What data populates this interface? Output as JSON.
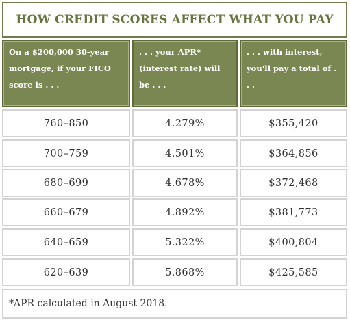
{
  "header": {
    "title": "HOW CREDIT SCORES AFFECT WHAT YOU PAY"
  },
  "table": {
    "columns": [
      "On a $200,000 30-year mortgage, if your FICO score is . . .",
      ". . . your APR* (interest rate) will be . . .",
      ". . . with interest, you'll pay a total of . . ."
    ],
    "rows": [
      [
        "760–850",
        "4.279%",
        "$355,420"
      ],
      [
        "700–759",
        "4.501%",
        "$364,856"
      ],
      [
        "680–699",
        "4.678%",
        "$372,468"
      ],
      [
        "660–679",
        "4.892%",
        "$381,773"
      ],
      [
        "640–659",
        "5.322%",
        "$400,804"
      ],
      [
        "620–639",
        "5.868%",
        "$425,585"
      ]
    ]
  },
  "footnote": "*APR calculated in August 2018."
}
